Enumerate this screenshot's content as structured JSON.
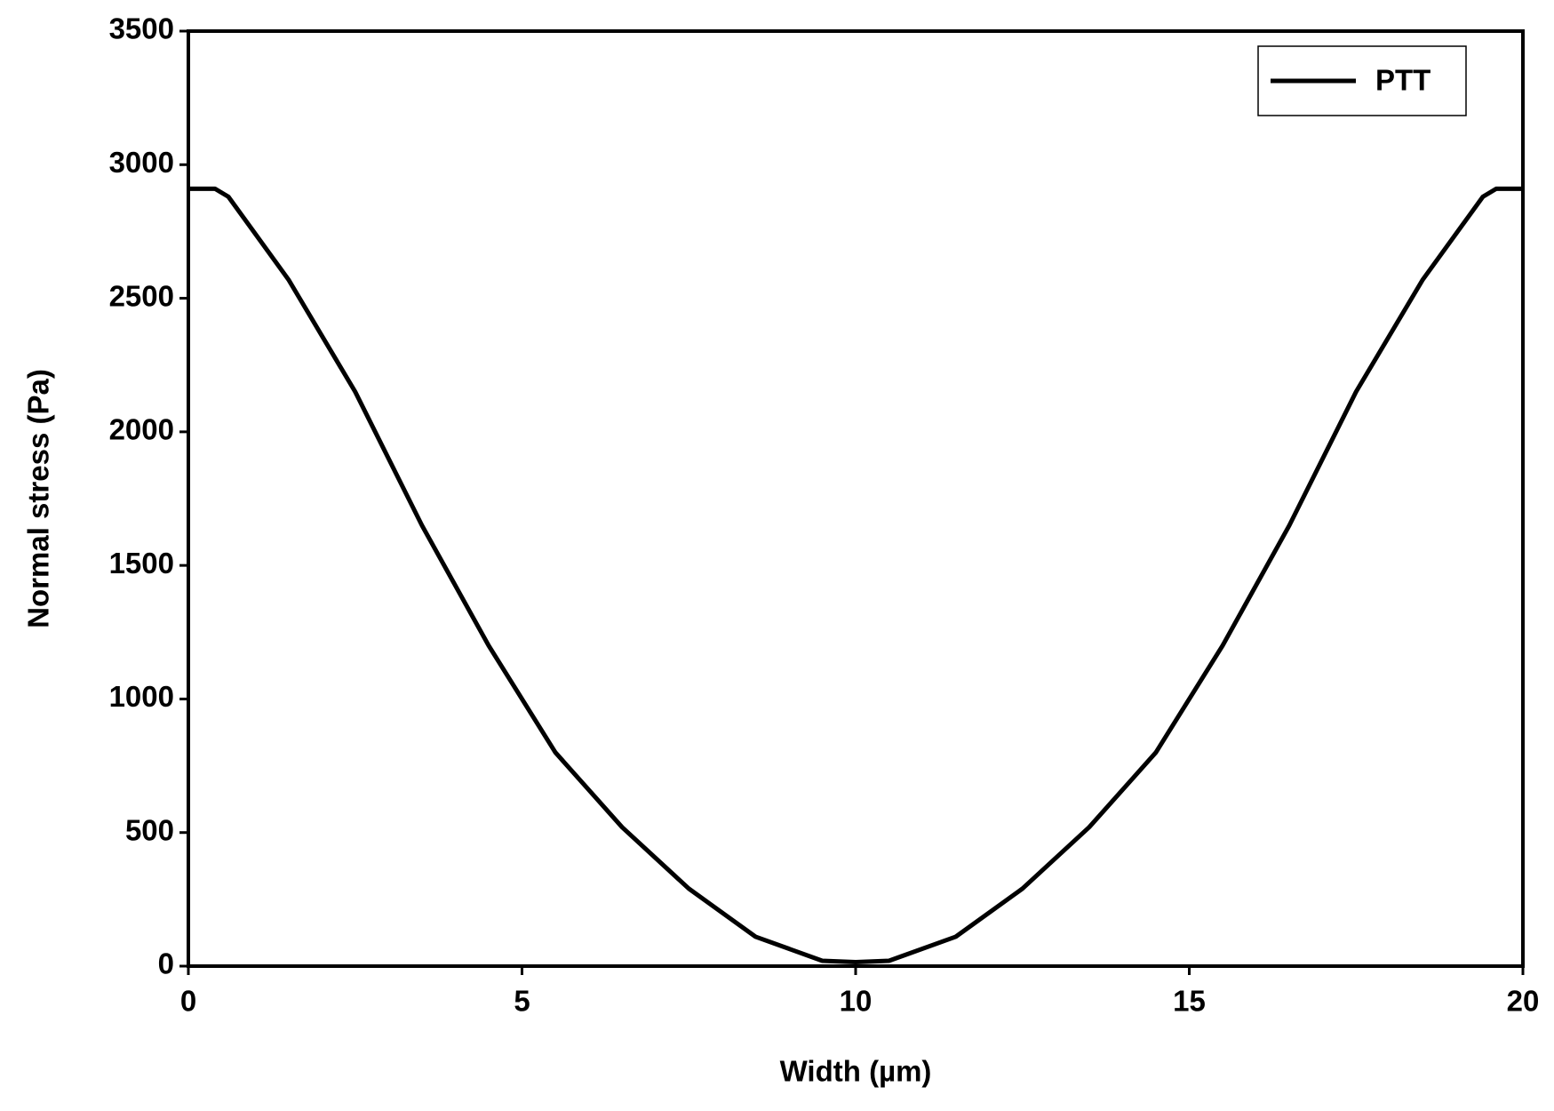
{
  "chart_data": {
    "type": "line",
    "x_label": "Width (µm)",
    "y_label": "Normal stress (Pa)",
    "x": [
      0,
      0.4,
      0.6,
      1.5,
      2.5,
      3.5,
      4.5,
      5.5,
      6.5,
      7.5,
      8.5,
      9.5,
      10,
      10.5,
      11.5,
      12.5,
      13.5,
      14.5,
      15.5,
      16.5,
      17.5,
      18.5,
      19.4,
      19.6,
      20
    ],
    "series": [
      {
        "name": "PTT",
        "color": "#000000",
        "values": [
          2910,
          2910,
          2880,
          2570,
          2150,
          1650,
          1200,
          800,
          520,
          290,
          110,
          20,
          15,
          20,
          110,
          290,
          520,
          800,
          1200,
          1650,
          2150,
          2570,
          2880,
          2910,
          2910
        ]
      }
    ],
    "xlim": [
      0,
      20
    ],
    "xticks": [
      0,
      5,
      10,
      15,
      20
    ],
    "ylim": [
      0,
      3500
    ],
    "yticks": [
      0,
      500,
      1000,
      1500,
      2000,
      2500,
      3000,
      3500
    ],
    "legend": "upper right"
  }
}
